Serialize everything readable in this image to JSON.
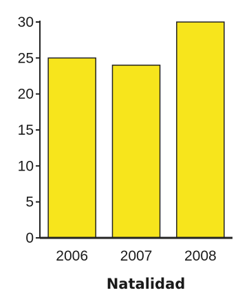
{
  "chart_data": {
    "type": "bar",
    "categories": [
      "2006",
      "2007",
      "2008"
    ],
    "values": [
      25,
      24,
      30
    ],
    "title": "",
    "xlabel": "Natalidad",
    "ylabel": "",
    "ylim": [
      0,
      30
    ],
    "yticks": [
      0,
      5,
      10,
      15,
      20,
      25,
      30
    ],
    "grid": false,
    "legend": "none",
    "colors": {
      "bar_fill": "#f7e51c",
      "bar_stroke": "#222222",
      "axis": "#222222",
      "text": "#1a1a1a"
    }
  }
}
